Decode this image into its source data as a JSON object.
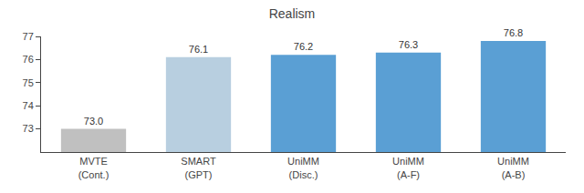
{
  "chart_data": {
    "type": "bar",
    "title": "Realism",
    "categories": [
      "MVTE\n(Cont.)",
      "SMART\n(GPT)",
      "UniMM\n(Disc.)",
      "UniMM\n(A-F)",
      "UniMM\n(A-B)"
    ],
    "values": [
      73.0,
      76.1,
      76.2,
      76.3,
      76.8
    ],
    "value_labels": [
      "73.0",
      "76.1",
      "76.2",
      "76.3",
      "76.8"
    ],
    "data_labels": true,
    "colors": [
      "#c0c0c0",
      "#b8cfe0",
      "#5a9fd4",
      "#5a9fd4",
      "#5a9fd4"
    ],
    "ylim": [
      72,
      77
    ],
    "yticks": [
      73,
      74,
      75,
      76,
      77
    ],
    "grid": false
  }
}
